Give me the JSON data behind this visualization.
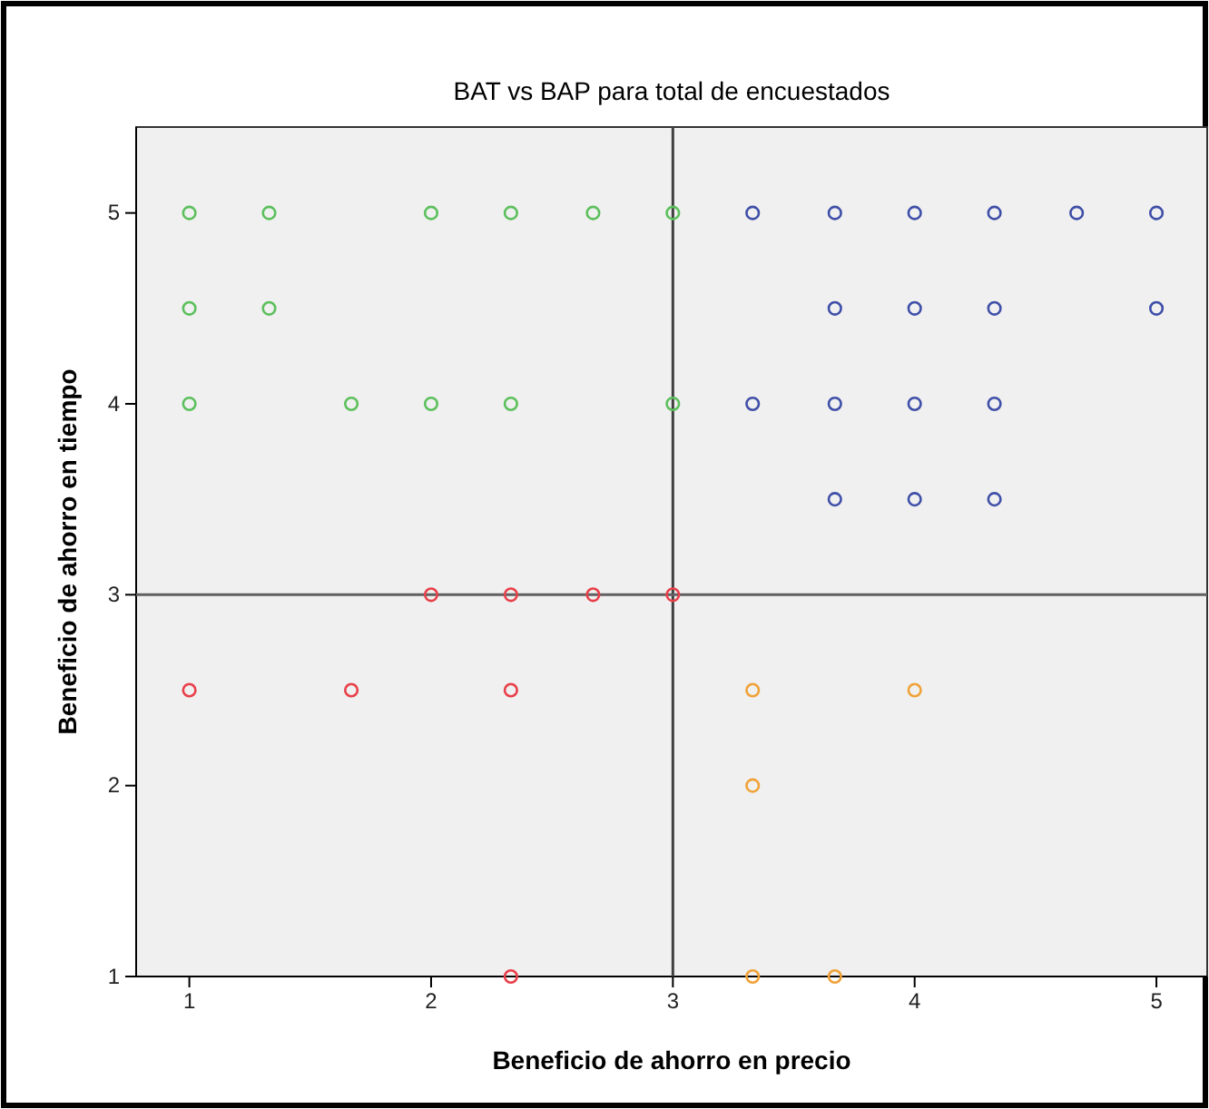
{
  "chart_data": {
    "type": "scatter",
    "title": "BAT vs BAP para total de encuestados",
    "xlabel": "Beneficio de ahorro en precio",
    "ylabel": "Beneficio de ahorro en tiempo",
    "xlim": [
      0.78,
      5.21
    ],
    "ylim": [
      1,
      5.45
    ],
    "xticks": [
      1,
      2,
      3,
      4,
      5
    ],
    "yticks": [
      1,
      2,
      3,
      4,
      5
    ],
    "grid": false,
    "marker": "circle",
    "ref_lines": [
      {
        "axis": "x",
        "value": 3,
        "color": "#404040"
      },
      {
        "axis": "y",
        "value": 3,
        "color": "#606060"
      }
    ],
    "series": [
      {
        "color": "#5cc05c",
        "x": [
          1,
          1.33,
          2,
          2.33,
          2.67,
          3,
          1,
          1.33,
          1,
          1.67,
          2,
          2.33,
          3
        ],
        "values": [
          5,
          5,
          5,
          5,
          5,
          5,
          4.5,
          4.5,
          4,
          4,
          4,
          4,
          4
        ]
      },
      {
        "color": "#3f4fa8",
        "x": [
          3.33,
          3.67,
          4,
          4.33,
          4.67,
          5,
          3.67,
          4,
          4.33,
          5,
          3.33,
          3.67,
          4,
          4.33,
          3.67,
          4,
          4.33
        ],
        "values": [
          5,
          5,
          5,
          5,
          5,
          5,
          4.5,
          4.5,
          4.5,
          4.5,
          4,
          4,
          4,
          4,
          3.5,
          3.5,
          3.5
        ]
      },
      {
        "color": "#e8404a",
        "x": [
          2,
          2.33,
          2.67,
          3,
          1,
          1.67,
          2.33,
          2.33
        ],
        "values": [
          3,
          3,
          3,
          3,
          2.5,
          2.5,
          2.5,
          1
        ]
      },
      {
        "color": "#f0a238",
        "x": [
          3.33,
          4,
          3.33,
          3.33,
          3.67
        ],
        "values": [
          2.5,
          2.5,
          2,
          1,
          1
        ]
      }
    ]
  }
}
